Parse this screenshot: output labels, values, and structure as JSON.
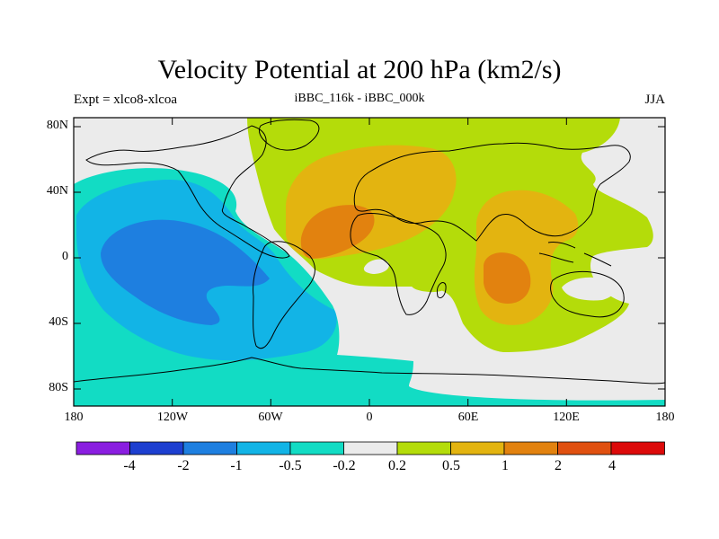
{
  "title": "Velocity Potential at 200 hPa (km2/s)",
  "subtitle_left": "Expt = xlco8-xlcoa",
  "subtitle_center": "iBBC_116k - iBBC_000k",
  "subtitle_right": "JJA",
  "y_ticks": [
    "80N",
    "40N",
    "0",
    "40S",
    "80S"
  ],
  "x_ticks": [
    "180",
    "120W",
    "60W",
    "0",
    "60E",
    "120E",
    "180"
  ],
  "colorbar": {
    "colors": [
      "#8a1ee0",
      "#1d3fd0",
      "#1e7fe0",
      "#12b4e6",
      "#12dcc4",
      "#ebebeb",
      "#b4dc0a",
      "#e3b410",
      "#e2820f",
      "#e05010",
      "#dc0a0a"
    ],
    "labels": [
      "-4",
      "-2",
      "-1",
      "-0.5",
      "-0.2",
      "0.2",
      "0.5",
      "1",
      "2",
      "4"
    ]
  },
  "fill_colors": {
    "neutral": "#ebebeb",
    "cyan": "#12dcc4",
    "light_blue": "#12b4e6",
    "blue": "#1e7fe0",
    "green": "#b4dc0a",
    "yellow_orange": "#e3b410",
    "orange": "#e2820f"
  }
}
